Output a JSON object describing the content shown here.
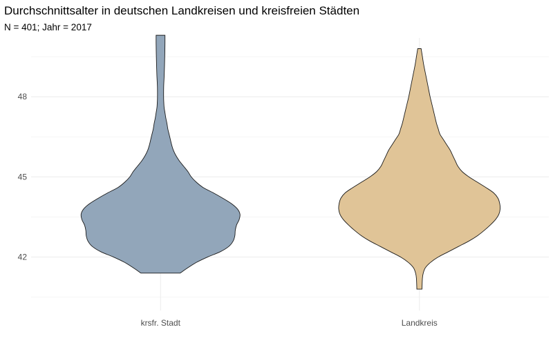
{
  "chart_data": {
    "type": "violin",
    "title": "Durchschnittsalter in deutschen Landkreisen und kreisfreien Städten",
    "subtitle": "N = 401; Jahr = 2017",
    "xlabel": "",
    "ylabel": "",
    "categories": [
      "krsfr. Stadt",
      "Landkreis"
    ],
    "y_ticks": [
      42,
      45,
      48
    ],
    "ylim": [
      40.0,
      50.2
    ],
    "grid": true,
    "colors": {
      "krsfr. Stadt": "#92a6ba",
      "Landkreis": "#e0c497"
    },
    "series": [
      {
        "category": "krsfr. Stadt",
        "profile": [
          [
            41.4,
            0.23
          ],
          [
            41.6,
            0.32
          ],
          [
            41.8,
            0.42
          ],
          [
            42.0,
            0.55
          ],
          [
            42.2,
            0.7
          ],
          [
            42.4,
            0.8
          ],
          [
            42.6,
            0.85
          ],
          [
            42.8,
            0.87
          ],
          [
            43.0,
            0.875
          ],
          [
            43.2,
            0.89
          ],
          [
            43.4,
            0.92
          ],
          [
            43.6,
            0.93
          ],
          [
            43.8,
            0.9
          ],
          [
            44.0,
            0.83
          ],
          [
            44.2,
            0.73
          ],
          [
            44.4,
            0.62
          ],
          [
            44.6,
            0.5
          ],
          [
            44.8,
            0.42
          ],
          [
            45.0,
            0.36
          ],
          [
            45.2,
            0.32
          ],
          [
            45.4,
            0.27
          ],
          [
            45.6,
            0.22
          ],
          [
            45.8,
            0.18
          ],
          [
            46.0,
            0.15
          ],
          [
            46.2,
            0.13
          ],
          [
            46.4,
            0.115
          ],
          [
            46.6,
            0.1
          ],
          [
            46.8,
            0.085
          ],
          [
            47.0,
            0.075
          ],
          [
            47.2,
            0.062
          ],
          [
            47.4,
            0.052
          ],
          [
            47.6,
            0.042
          ],
          [
            47.8,
            0.038
          ],
          [
            48.0,
            0.036
          ],
          [
            48.4,
            0.037
          ],
          [
            48.8,
            0.043
          ],
          [
            49.2,
            0.047
          ],
          [
            49.6,
            0.05
          ],
          [
            50.0,
            0.052
          ],
          [
            50.3,
            0.052
          ]
        ]
      },
      {
        "category": "Landkreis",
        "profile": [
          [
            40.8,
            0.03
          ],
          [
            41.2,
            0.035
          ],
          [
            41.4,
            0.045
          ],
          [
            41.6,
            0.07
          ],
          [
            41.8,
            0.13
          ],
          [
            42.0,
            0.22
          ],
          [
            42.2,
            0.34
          ],
          [
            42.4,
            0.46
          ],
          [
            42.6,
            0.58
          ],
          [
            42.8,
            0.68
          ],
          [
            43.0,
            0.76
          ],
          [
            43.2,
            0.83
          ],
          [
            43.4,
            0.89
          ],
          [
            43.6,
            0.93
          ],
          [
            43.8,
            0.945
          ],
          [
            44.0,
            0.94
          ],
          [
            44.2,
            0.92
          ],
          [
            44.4,
            0.87
          ],
          [
            44.6,
            0.78
          ],
          [
            44.8,
            0.68
          ],
          [
            45.0,
            0.58
          ],
          [
            45.2,
            0.5
          ],
          [
            45.4,
            0.45
          ],
          [
            45.6,
            0.42
          ],
          [
            45.8,
            0.39
          ],
          [
            46.0,
            0.36
          ],
          [
            46.2,
            0.32
          ],
          [
            46.4,
            0.28
          ],
          [
            46.6,
            0.24
          ],
          [
            46.8,
            0.22
          ],
          [
            47.0,
            0.2
          ],
          [
            47.2,
            0.185
          ],
          [
            47.4,
            0.17
          ],
          [
            47.6,
            0.155
          ],
          [
            47.8,
            0.14
          ],
          [
            48.0,
            0.125
          ],
          [
            48.4,
            0.1
          ],
          [
            48.8,
            0.075
          ],
          [
            49.2,
            0.05
          ],
          [
            49.5,
            0.035
          ],
          [
            49.8,
            0.02
          ]
        ]
      }
    ]
  }
}
